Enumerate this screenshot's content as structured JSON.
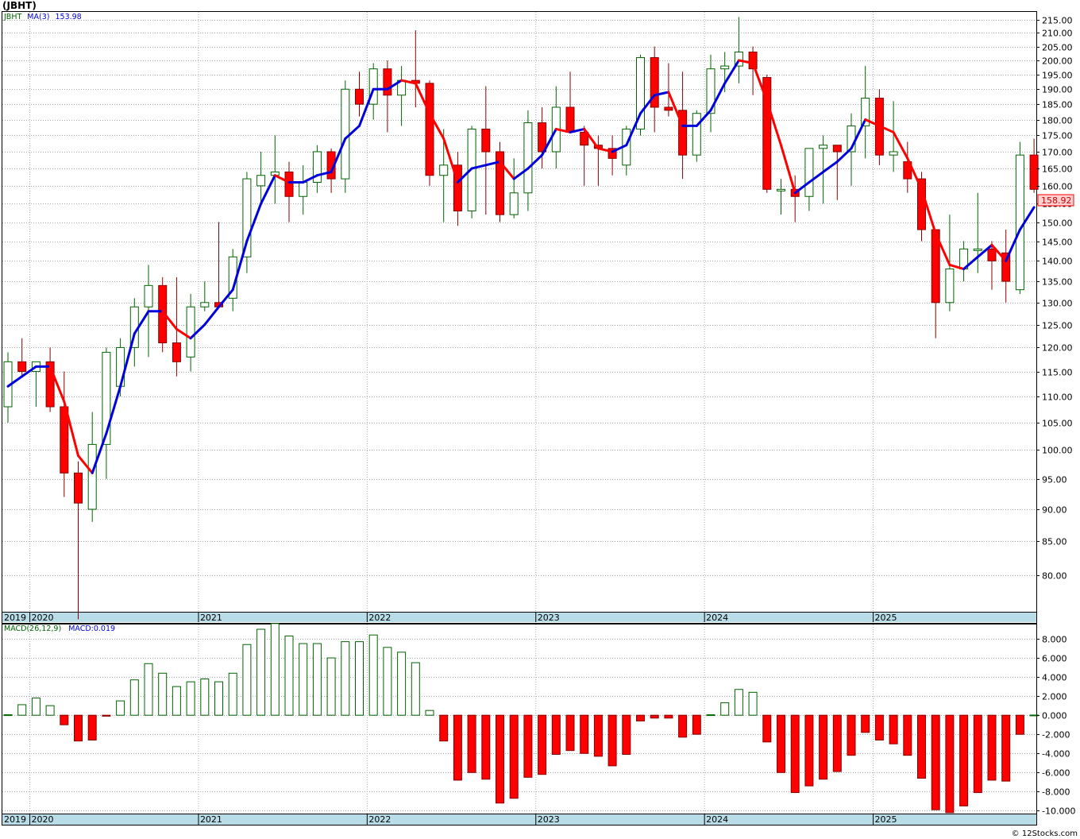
{
  "header": {
    "symbol_title": "(JBHT)",
    "footer_credit": "© 12Stocks.com"
  },
  "price_panel": {
    "legend_symbol": "JBHT",
    "legend_ma_label": "MA(3)",
    "legend_ma_value": "153.98",
    "last_price_tag": "158.92",
    "y_ticks": [
      "215.00",
      "210.00",
      "205.00",
      "200.00",
      "195.00",
      "190.00",
      "185.00",
      "180.00",
      "175.00",
      "170.00",
      "165.00",
      "160.00",
      "155.00",
      "150.00",
      "145.00",
      "140.00",
      "135.00",
      "130.00",
      "125.00",
      "120.00",
      "115.00",
      "110.00",
      "105.00",
      "100.00",
      "95.00",
      "90.00",
      "85.00",
      "80.00"
    ]
  },
  "macd_panel": {
    "legend_label": "MACD(26,12,9)",
    "legend_value": "MACD:0.019",
    "y_ticks": [
      "8.000",
      "6.000",
      "4.000",
      "2.000",
      "0.000",
      "-2.000",
      "-4.000",
      "-6.000",
      "-8.000",
      "-10.000"
    ]
  },
  "year_labels": [
    "2019",
    "2020",
    "2021",
    "2022",
    "2023",
    "2024",
    "2025"
  ],
  "colors": {
    "up": "#006400",
    "down": "#ff0000",
    "ma_up": "#0000dd",
    "ma_down": "#ff0000",
    "axis_band": "#b8dde8",
    "grid": "#aaaaaa"
  },
  "chart_data": [
    {
      "type": "candlestick",
      "scale": "log",
      "period": "monthly",
      "ylim": [
        75,
        218
      ],
      "x_start": "2019-11",
      "ohlc": [
        [
          108,
          119,
          105,
          117
        ],
        [
          117,
          122,
          114,
          115
        ],
        [
          115,
          117,
          108,
          117
        ],
        [
          117,
          120,
          107,
          108
        ],
        [
          108,
          115,
          92,
          96
        ],
        [
          96,
          98,
          74,
          91
        ],
        [
          90,
          107,
          88,
          101
        ],
        [
          101,
          120,
          95,
          119
        ],
        [
          112,
          122,
          110,
          120
        ],
        [
          120,
          131,
          116,
          129
        ],
        [
          129,
          139,
          118,
          134
        ],
        [
          134,
          136,
          119,
          121
        ],
        [
          121,
          136,
          114,
          117
        ],
        [
          118,
          132,
          115,
          129
        ],
        [
          129,
          135,
          128,
          130
        ],
        [
          130,
          150,
          129,
          129
        ],
        [
          131,
          143,
          128,
          141
        ],
        [
          141,
          164,
          137,
          162
        ],
        [
          160,
          170,
          155,
          163
        ],
        [
          163,
          175,
          155,
          164
        ],
        [
          164,
          167,
          150,
          157
        ],
        [
          157,
          166,
          152,
          161
        ],
        [
          161,
          172,
          158,
          170
        ],
        [
          170,
          171,
          158,
          162
        ],
        [
          162,
          193,
          158,
          190
        ],
        [
          190,
          196,
          181,
          185
        ],
        [
          185,
          199,
          180,
          197
        ],
        [
          197,
          200,
          176,
          188
        ],
        [
          188,
          198,
          178,
          193
        ],
        [
          193,
          211,
          184,
          192
        ],
        [
          192,
          193,
          160,
          163
        ],
        [
          163,
          177,
          150,
          166
        ],
        [
          166,
          170,
          149,
          153
        ],
        [
          153,
          178,
          151,
          177
        ],
        [
          177,
          191,
          152,
          170
        ],
        [
          170,
          173,
          150,
          152
        ],
        [
          152,
          168,
          151,
          158
        ],
        [
          158,
          183,
          153,
          179
        ],
        [
          179,
          184,
          165,
          170
        ],
        [
          170,
          191,
          165,
          184
        ],
        [
          184,
          196,
          176,
          176
        ],
        [
          176,
          178,
          160,
          172
        ],
        [
          172,
          175,
          160,
          171
        ],
        [
          171,
          175,
          163,
          168
        ],
        [
          166,
          178,
          163,
          177
        ],
        [
          177,
          202,
          175,
          201
        ],
        [
          201,
          205,
          176,
          184
        ],
        [
          184,
          199,
          181,
          183
        ],
        [
          183,
          196,
          162,
          169
        ],
        [
          169,
          183,
          167,
          182
        ],
        [
          182,
          202,
          176,
          197
        ],
        [
          197,
          203,
          189,
          198
        ],
        [
          198,
          216,
          192,
          203
        ],
        [
          203,
          205,
          188,
          197
        ],
        [
          194,
          195,
          158,
          159
        ],
        [
          159,
          162,
          152,
          159
        ],
        [
          159,
          163,
          150,
          157
        ],
        [
          157,
          171,
          153,
          171
        ],
        [
          171,
          175,
          155,
          172
        ],
        [
          172,
          172,
          156,
          170
        ],
        [
          170,
          182,
          160,
          178
        ],
        [
          178,
          198,
          168,
          187
        ],
        [
          187,
          190,
          166,
          169
        ],
        [
          169,
          186,
          164,
          170
        ],
        [
          167,
          173,
          158,
          162
        ],
        [
          162,
          164,
          145,
          148
        ],
        [
          148,
          148,
          122,
          130
        ],
        [
          130,
          152,
          128,
          138
        ],
        [
          138,
          145,
          135,
          143
        ],
        [
          143,
          158,
          137,
          143
        ],
        [
          143,
          145,
          133,
          140
        ],
        [
          142,
          148,
          130,
          135
        ],
        [
          133,
          173,
          132,
          169
        ],
        [
          169,
          174,
          158,
          159
        ]
      ],
      "ma3": [
        112,
        114,
        116,
        116,
        109,
        99,
        96,
        103,
        112,
        123,
        128,
        128,
        124,
        122,
        125,
        129,
        133,
        145,
        155,
        163,
        161,
        161,
        163,
        164,
        174,
        178,
        190,
        190,
        193,
        192,
        182,
        174,
        161,
        165,
        166,
        167,
        162,
        165,
        169,
        177,
        176,
        177,
        171,
        170,
        172,
        182,
        188,
        189,
        178,
        178,
        183,
        192,
        200,
        199,
        186,
        172,
        158,
        161,
        164,
        167,
        171,
        180,
        178,
        176,
        168,
        159,
        147,
        139,
        138,
        141,
        144,
        140,
        148,
        154
      ]
    },
    {
      "type": "bar",
      "title": "MACD(26,12,9)",
      "ylim": [
        -10.3,
        9.5
      ],
      "x_start": "2019-11",
      "values": [
        0.05,
        1.1,
        1.8,
        1.0,
        -1.0,
        -2.7,
        -2.6,
        -0.1,
        1.5,
        3.7,
        5.4,
        4.4,
        3.0,
        3.5,
        3.8,
        3.5,
        4.4,
        7.4,
        9.0,
        9.6,
        8.3,
        7.5,
        7.5,
        6.0,
        7.7,
        7.7,
        8.4,
        7.1,
        6.6,
        5.5,
        0.5,
        -2.7,
        -6.8,
        -6.0,
        -6.7,
        -9.2,
        -8.7,
        -6.5,
        -6.2,
        -4.1,
        -3.7,
        -4.0,
        -4.3,
        -5.3,
        -4.1,
        -0.6,
        -0.3,
        -0.3,
        -2.3,
        -2.0,
        0.05,
        1.3,
        2.7,
        2.4,
        -2.8,
        -6.0,
        -8.1,
        -7.4,
        -6.7,
        -5.9,
        -4.2,
        -1.8,
        -2.6,
        -3.0,
        -4.2,
        -6.6,
        -9.9,
        -10.2,
        -9.5,
        -8.1,
        -6.8,
        -6.9,
        -2.0,
        0.02
      ]
    }
  ]
}
